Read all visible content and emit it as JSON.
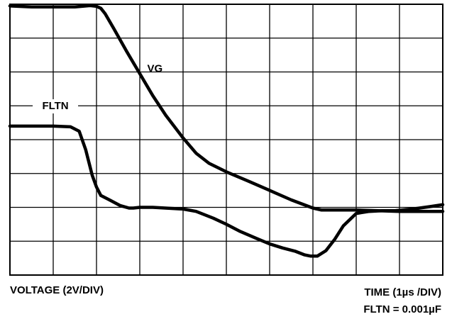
{
  "chart_data": {
    "type": "line",
    "title": "",
    "x_divisions": 10,
    "y_divisions": 8,
    "grid": true,
    "xlim": [
      0,
      10
    ],
    "ylim": [
      0,
      8
    ],
    "series": [
      {
        "name": "VG",
        "x": [
          0,
          0.5,
          1.0,
          1.5,
          1.85,
          2.0,
          2.1,
          2.2,
          2.4,
          2.7,
          3.0,
          3.3,
          3.6,
          4.0,
          4.3,
          4.6,
          5.0,
          5.5,
          6.0,
          6.5,
          7.0,
          7.2,
          7.4,
          7.7,
          8.0,
          8.5,
          9.0,
          9.5,
          10.0
        ],
        "y": [
          7.95,
          7.92,
          7.92,
          7.92,
          7.96,
          7.94,
          7.88,
          7.72,
          7.28,
          6.6,
          5.95,
          5.3,
          4.72,
          4.05,
          3.6,
          3.3,
          3.05,
          2.78,
          2.5,
          2.22,
          1.98,
          1.92,
          1.92,
          1.92,
          1.92,
          1.9,
          1.88,
          1.88,
          1.88
        ]
      },
      {
        "name": "FLTN",
        "x": [
          0,
          0.5,
          1.0,
          1.4,
          1.6,
          1.75,
          1.9,
          2.0,
          2.1,
          2.3,
          2.55,
          2.75,
          2.85,
          3.0,
          3.3,
          3.7,
          4.0,
          4.3,
          4.7,
          5.0,
          5.3,
          5.7,
          6.0,
          6.3,
          6.6,
          6.8,
          6.95,
          7.1,
          7.3,
          7.5,
          7.7,
          8.0,
          8.3,
          8.6,
          8.9,
          9.3,
          9.7,
          10.0
        ],
        "y": [
          4.4,
          4.4,
          4.4,
          4.38,
          4.25,
          3.7,
          2.95,
          2.6,
          2.35,
          2.22,
          2.05,
          1.98,
          1.98,
          2.0,
          2.0,
          1.97,
          1.95,
          1.88,
          1.68,
          1.5,
          1.3,
          1.08,
          0.92,
          0.8,
          0.7,
          0.6,
          0.56,
          0.56,
          0.72,
          1.05,
          1.45,
          1.82,
          1.88,
          1.9,
          1.9,
          1.95,
          2.02,
          2.08
        ]
      }
    ],
    "annotations": [
      {
        "text": "VG",
        "series": "VG"
      },
      {
        "text": "FLTN",
        "series": "FLTN"
      }
    ],
    "xlabel": "TIME (1µs /DIV)",
    "ylabel": "VOLTAGE (2V/DIV)",
    "note": "FLTN = 0.001µF"
  }
}
